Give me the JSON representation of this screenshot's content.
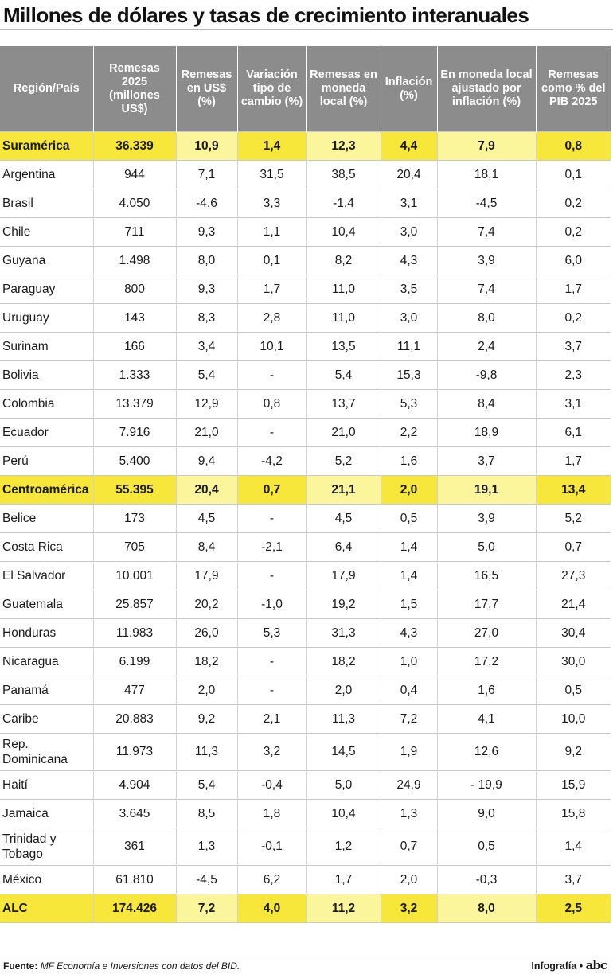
{
  "title": "Millones de dólares y tasas de crecimiento interanuales",
  "table": {
    "headers": [
      "Región/País",
      "Remesas 2025 (millones US$)",
      "Remesas en US$ (%)",
      "Variación tipo de cambio (%)",
      "Remesas en moneda local (%)",
      "Inflación (%)",
      "En moneda local ajustado por inflación (%)",
      "Remesas como % del PIB 2025"
    ],
    "rows": [
      {
        "type": "region",
        "cells": [
          "Suramérica",
          "36.339",
          "10,9",
          "1,4",
          "12,3",
          "4,4",
          "7,9",
          "0,8"
        ]
      },
      {
        "type": "country",
        "cells": [
          "Argentina",
          "944",
          "7,1",
          "31,5",
          "38,5",
          "20,4",
          "18,1",
          "0,1"
        ]
      },
      {
        "type": "country",
        "cells": [
          "Brasil",
          "4.050",
          "-4,6",
          "3,3",
          "-1,4",
          "3,1",
          "-4,5",
          "0,2"
        ]
      },
      {
        "type": "country",
        "cells": [
          "Chile",
          "711",
          "9,3",
          "1,1",
          "10,4",
          "3,0",
          "7,4",
          "0,2"
        ]
      },
      {
        "type": "country",
        "cells": [
          "Guyana",
          "1.498",
          "8,0",
          "0,1",
          "8,2",
          "4,3",
          "3,9",
          "6,0"
        ]
      },
      {
        "type": "country",
        "cells": [
          "Paraguay",
          "800",
          "9,3",
          "1,7",
          "11,0",
          "3,5",
          "7,4",
          "1,7"
        ]
      },
      {
        "type": "country",
        "cells": [
          "Uruguay",
          "143",
          "8,3",
          "2,8",
          "11,0",
          "3,0",
          "8,0",
          "0,2"
        ]
      },
      {
        "type": "country",
        "cells": [
          "Surinam",
          "166",
          "3,4",
          "10,1",
          "13,5",
          "11,1",
          "2,4",
          "3,7"
        ]
      },
      {
        "type": "country",
        "cells": [
          "Bolivia",
          "1.333",
          "5,4",
          "-",
          "5,4",
          "15,3",
          "-9,8",
          "2,3"
        ]
      },
      {
        "type": "country",
        "cells": [
          "Colombia",
          "13.379",
          "12,9",
          "0,8",
          "13,7",
          "5,3",
          "8,4",
          "3,1"
        ]
      },
      {
        "type": "country",
        "cells": [
          "Ecuador",
          "7.916",
          "21,0",
          "-",
          "21,0",
          "2,2",
          "18,9",
          "6,1"
        ]
      },
      {
        "type": "country",
        "cells": [
          "Perú",
          "5.400",
          "9,4",
          "-4,2",
          "5,2",
          "1,6",
          "3,7",
          "1,7"
        ]
      },
      {
        "type": "region",
        "cells": [
          "Centroamérica",
          "55.395",
          "20,4",
          "0,7",
          "21,1",
          "2,0",
          "19,1",
          "13,4"
        ]
      },
      {
        "type": "country",
        "cells": [
          "Belice",
          "173",
          "4,5",
          "-",
          "4,5",
          "0,5",
          "3,9",
          "5,2"
        ]
      },
      {
        "type": "country",
        "cells": [
          "Costa Rica",
          "705",
          "8,4",
          "-2,1",
          "6,4",
          "1,4",
          "5,0",
          "0,7"
        ]
      },
      {
        "type": "country",
        "cells": [
          "El Salvador",
          "10.001",
          "17,9",
          "-",
          "17,9",
          "1,4",
          "16,5",
          "27,3"
        ]
      },
      {
        "type": "country",
        "cells": [
          "Guatemala",
          "25.857",
          "20,2",
          "-1,0",
          "19,2",
          "1,5",
          "17,7",
          "21,4"
        ]
      },
      {
        "type": "country",
        "cells": [
          "Honduras",
          "11.983",
          "26,0",
          "5,3",
          "31,3",
          "4,3",
          "27,0",
          "30,4"
        ]
      },
      {
        "type": "country",
        "cells": [
          "Nicaragua",
          "6.199",
          "18,2",
          "-",
          "18,2",
          "1,0",
          "17,2",
          "30,0"
        ]
      },
      {
        "type": "country",
        "cells": [
          "Panamá",
          "477",
          "2,0",
          "-",
          "2,0",
          "0,4",
          "1,6",
          "0,5"
        ]
      },
      {
        "type": "country",
        "cells": [
          "Caribe",
          "20.883",
          "9,2",
          "2,1",
          "11,3",
          "7,2",
          "4,1",
          "10,0"
        ]
      },
      {
        "type": "country",
        "tall": true,
        "cells": [
          "Rep. Dominicana",
          "11.973",
          "11,3",
          "3,2",
          "14,5",
          "1,9",
          "12,6",
          "9,2"
        ]
      },
      {
        "type": "country",
        "cells": [
          "Haití",
          "4.904",
          "5,4",
          "-0,4",
          "5,0",
          "24,9",
          "- 19,9",
          "15,9"
        ]
      },
      {
        "type": "country",
        "cells": [
          "Jamaica",
          "3.645",
          "8,5",
          "1,8",
          "10,4",
          "1,3",
          "9,0",
          "15,8"
        ]
      },
      {
        "type": "country",
        "tall": true,
        "cells": [
          "Trinidad y Tobago",
          "361",
          "1,3",
          "-0,1",
          "1,2",
          "0,7",
          "0,5",
          "1,4"
        ]
      },
      {
        "type": "country",
        "cells": [
          "México",
          "61.810",
          "-4,5",
          "6,2",
          "1,7",
          "2,0",
          "-0,3",
          "3,7"
        ]
      },
      {
        "type": "region",
        "cells": [
          "ALC",
          "174.426",
          "7,2",
          "4,0",
          "11,2",
          "3,2",
          "8,0",
          "2,5"
        ]
      }
    ]
  },
  "footer": {
    "source_label": "Fuente:",
    "source_text": "MF Economía e Inversiones con datos del BID.",
    "credit": "Infografía •",
    "logo_text": "abc"
  },
  "colors": {
    "header_bg": "#8c8c8c",
    "region_strong": "#f7e73b",
    "region_light": "#fbf59c"
  }
}
